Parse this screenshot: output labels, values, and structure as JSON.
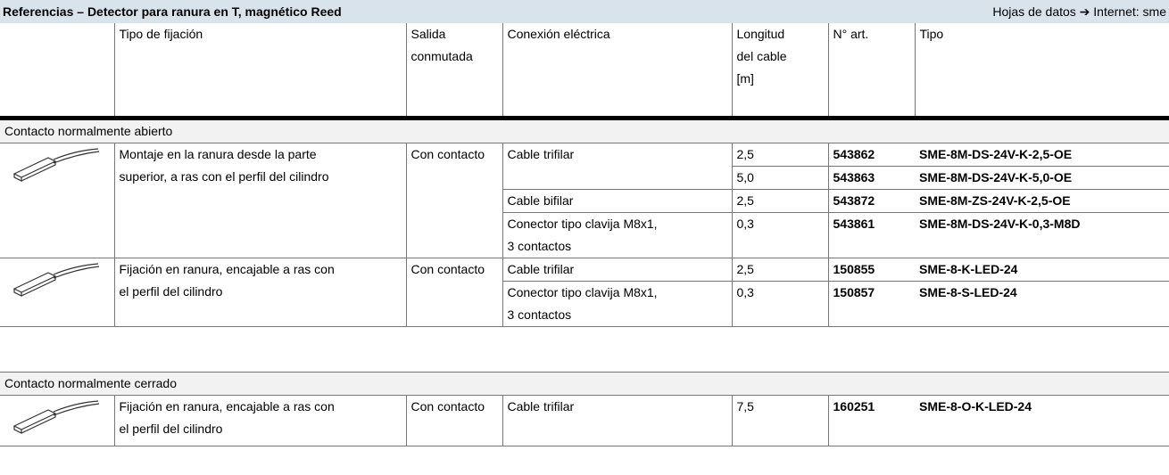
{
  "header": {
    "title": "Referencias – Detector para ranura en T, magnético Reed",
    "datasheet": "Hojas de datos ➔ Internet: sme"
  },
  "columns": [
    "Tipo de fijación",
    "Salida\nconmutada",
    "Conexión eléctrica",
    "Longitud\ndel cable\n[m]",
    "N° art.",
    "Tipo"
  ],
  "sections": [
    {
      "label": "Contacto normalmente abierto",
      "groups": [
        {
          "fixing": "Montaje en la ranura desde la parte\nsuperior, a ras con el perfil del cilindro",
          "output": "Con contacto",
          "connections": [
            {
              "connection": "Cable trifilar",
              "items": [
                {
                  "length": "2,5",
                  "part": "543862",
                  "type": "SME-8M-DS-24V-K-2,5-OE"
                },
                {
                  "length": "5,0",
                  "part": "543863",
                  "type": "SME-8M-DS-24V-K-5,0-OE"
                }
              ]
            },
            {
              "connection": "Cable bifilar",
              "items": [
                {
                  "length": "2,5",
                  "part": "543872",
                  "type": "SME-8M-ZS-24V-K-2,5-OE"
                }
              ]
            },
            {
              "connection": "Conector tipo clavija M8x1,\n3 contactos",
              "items": [
                {
                  "length": "0,3",
                  "part": "543861",
                  "type": "SME-8M-DS-24V-K-0,3-M8D"
                }
              ]
            }
          ]
        },
        {
          "fixing": "Fijación en ranura, encajable a ras con\nel perfil del cilindro",
          "output": "Con contacto",
          "connections": [
            {
              "connection": "Cable trifilar",
              "items": [
                {
                  "length": "2,5",
                  "part": "150855",
                  "type": "SME-8-K-LED-24"
                }
              ]
            },
            {
              "connection": "Conector tipo clavija M8x1,\n3 contactos",
              "items": [
                {
                  "length": "0,3",
                  "part": "150857",
                  "type": "SME-8-S-LED-24"
                }
              ]
            }
          ]
        }
      ]
    },
    {
      "label": "Contacto normalmente cerrado",
      "groups": [
        {
          "fixing": "Fijación en ranura, encajable a ras con\nel perfil del cilindro",
          "output": "Con contacto",
          "connections": [
            {
              "connection": "Cable trifilar",
              "items": [
                {
                  "length": "7,5",
                  "part": "160251",
                  "type": "SME-8-O-K-LED-24"
                }
              ]
            }
          ]
        }
      ]
    }
  ]
}
